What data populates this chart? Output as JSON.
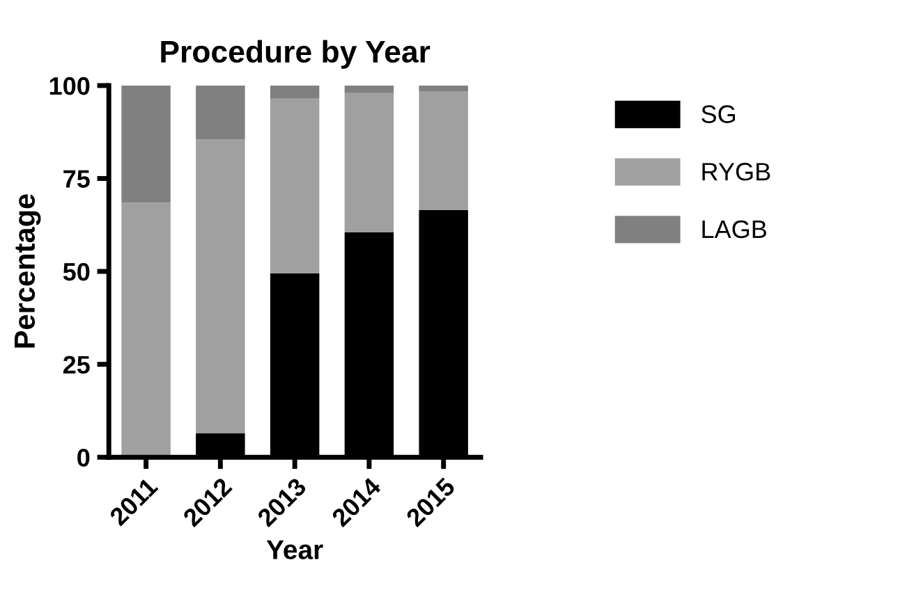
{
  "chart_data": {
    "type": "bar",
    "title": "Procedure by Year",
    "xlabel": "Year",
    "ylabel": "Percentage",
    "categories": [
      "2011",
      "2012",
      "2013",
      "2014",
      "2015"
    ],
    "stacked": true,
    "series": [
      {
        "name": "SG",
        "color": "#000000",
        "values": [
          0,
          6.5,
          49.5,
          60.5,
          66.5
        ]
      },
      {
        "name": "RYGB",
        "color": "#a0a0a0",
        "values": [
          68.5,
          79,
          47,
          37.5,
          32
        ]
      },
      {
        "name": "LAGB",
        "color": "#808080",
        "values": [
          31.5,
          14.5,
          3.5,
          2,
          1.5
        ]
      }
    ],
    "ylim": [
      0,
      100
    ],
    "yticks": [
      0,
      25,
      50,
      75,
      100
    ],
    "grid": false,
    "legend": "top right"
  }
}
